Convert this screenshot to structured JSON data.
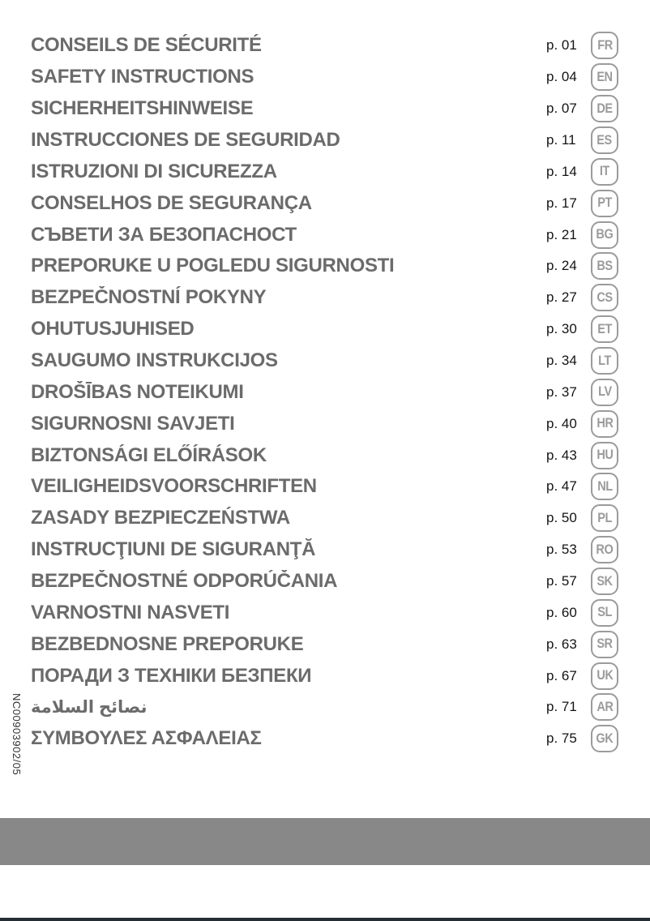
{
  "document": {
    "code_vertical": "NC00903902/05"
  },
  "colors": {
    "title_gray": "#6b6b6b",
    "page_number_black": "#141414",
    "badge_gray": "#9b9b9b",
    "footer_band_gray": "#888888",
    "bottom_bar_dark": "#242c34",
    "background": "#ffffff"
  },
  "toc": {
    "items": [
      {
        "title": "CONSEILS DE SÉCURITÉ",
        "page": "p. 01",
        "lang": "FR"
      },
      {
        "title": "SAFETY INSTRUCTIONS",
        "page": "p. 04",
        "lang": "EN"
      },
      {
        "title": "SICHERHEITSHINWEISE",
        "page": "p. 07",
        "lang": "DE"
      },
      {
        "title": "INSTRUCCIONES DE SEGURIDAD",
        "page": "p. 11",
        "lang": "ES"
      },
      {
        "title": "ISTRUZIONI DI SICUREZZA",
        "page": "p. 14",
        "lang": "IT"
      },
      {
        "title": "CONSELHOS DE SEGURANÇA",
        "page": "p. 17",
        "lang": "PT"
      },
      {
        "title": "СЪВЕТИ ЗА БЕЗОПАСНОСТ",
        "page": "p. 21",
        "lang": "BG"
      },
      {
        "title": "PREPORUKE U POGLEDU SIGURNOSTI",
        "page": "p. 24",
        "lang": "BS"
      },
      {
        "title": "BEZPEČNOSTNÍ POKYNY",
        "page": "p. 27",
        "lang": "CS"
      },
      {
        "title": "OHUTUSJUHISED",
        "page": "p. 30",
        "lang": "ET"
      },
      {
        "title": "SAUGUMO INSTRUKCIJOS",
        "page": "p. 34",
        "lang": "LT"
      },
      {
        "title": "DROŠĪBAS NOTEIKUMI",
        "page": "p. 37",
        "lang": "LV"
      },
      {
        "title": "SIGURNOSNI SAVJETI",
        "page": "p. 40",
        "lang": "HR"
      },
      {
        "title": "BIZTONSÁGI ELŐÍRÁSOK",
        "page": "p. 43",
        "lang": "HU"
      },
      {
        "title": "VEILIGHEIDSVOORSCHRIFTEN",
        "page": "p. 47",
        "lang": "NL"
      },
      {
        "title": "ZASADY BEZPIECZEŃSTWA",
        "page": "p. 50",
        "lang": "PL"
      },
      {
        "title": "INSTRUCŢIUNI DE SIGURANŢĂ",
        "page": "p. 53",
        "lang": "RO"
      },
      {
        "title": "BEZPEČNOSTNÉ ODPORÚČANIA",
        "page": "p. 57",
        "lang": "SK"
      },
      {
        "title": "VARNOSTNI NASVETI",
        "page": "p. 60",
        "lang": "SL"
      },
      {
        "title": "BEZBEDNOSNE PREPORUKE",
        "page": "p. 63",
        "lang": "SR"
      },
      {
        "title": "ПОРАДИ З ТЕХНІКИ БЕЗПЕКИ",
        "page": "p. 67",
        "lang": "UK"
      },
      {
        "title": "نصائح السلامة",
        "page": "p. 71",
        "lang": "AR"
      },
      {
        "title": "ΣΥΜΒΟΥΛΕΣ ΑΣΦΑΛΕΙΑΣ",
        "page": "p. 75",
        "lang": "GK"
      }
    ]
  }
}
